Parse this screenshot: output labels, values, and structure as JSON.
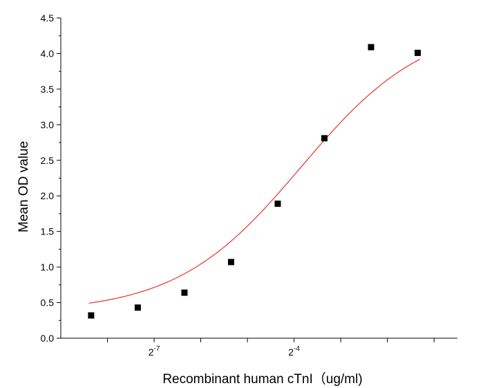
{
  "chart_data": {
    "type": "scatter",
    "title": "",
    "xlabel": "Recombinant human cTnI（ug/ml)",
    "ylabel": "Mean OD value",
    "x_scale": "log2",
    "xlim_log2": [
      -9.0,
      -0.5
    ],
    "ylim": [
      0,
      4.5
    ],
    "y_ticks": [
      0.0,
      0.5,
      1.0,
      1.5,
      2.0,
      2.5,
      3.0,
      3.5,
      4.0,
      4.5
    ],
    "y_tick_labels": [
      "0.0",
      "0.5",
      "1.0",
      "1.5",
      "2.0",
      "2.5",
      "3.0",
      "3.5",
      "4.0",
      "4.5"
    ],
    "x_tick_log2": [
      -8,
      -7,
      -6,
      -5,
      -4,
      -3,
      -2,
      -1
    ],
    "x_tick_labels": [
      {
        "log2": -7,
        "base": "2",
        "exp": "-7"
      },
      {
        "log2": -4,
        "base": "2",
        "exp": "-4"
      }
    ],
    "grid": false,
    "series": [
      {
        "marker": "square",
        "color": "#000000",
        "points": [
          {
            "x_log2": -8.35,
            "y": 0.32
          },
          {
            "x_log2": -7.35,
            "y": 0.43
          },
          {
            "x_log2": -6.35,
            "y": 0.64
          },
          {
            "x_log2": -5.35,
            "y": 1.07
          },
          {
            "x_log2": -4.35,
            "y": 1.89
          },
          {
            "x_log2": -3.35,
            "y": 2.81
          },
          {
            "x_log2": -2.35,
            "y": 4.09
          },
          {
            "x_log2": -1.35,
            "y": 4.01
          }
        ]
      }
    ],
    "fit_curve": {
      "type": "logistic",
      "color": "#e8322a",
      "bottom": 0.36,
      "top": 4.45,
      "x50_log2": -3.85,
      "slope": 1.08,
      "x_range_log2": [
        -8.4,
        -1.3
      ]
    }
  }
}
